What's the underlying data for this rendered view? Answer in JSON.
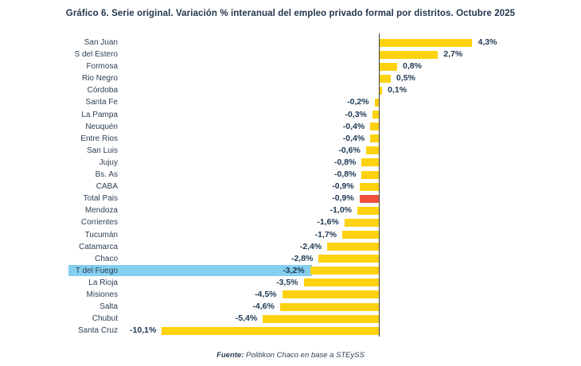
{
  "title": "Gráfico 6. Serie original. Variación % interanual del empleo privado formal por distritos. Octubre 2025",
  "source": {
    "label": "Fuente:",
    "text": " Politikon Chaco en base a STEySS"
  },
  "colors": {
    "bar": "#fdd20e",
    "bar_special": "#f0503c",
    "row_highlight": "#85cfef",
    "axis": "#3f3f3f",
    "text": "#24364f"
  },
  "chart_data": {
    "type": "bar",
    "orientation": "horizontal",
    "unit": "%",
    "value_range": [
      -10.1,
      4.3
    ],
    "grid": false,
    "legend": false,
    "title": "Gráfico 6. Serie original. Variación % interanual del empleo privado formal por distritos. Octubre 2025",
    "highlighted_category": "T del Fuego",
    "special_colored_category": "Total Pais",
    "series": [
      {
        "name": "San Juan",
        "value": 4.3,
        "label": "4,3%"
      },
      {
        "name": "S del Estero",
        "value": 2.7,
        "label": "2,7%"
      },
      {
        "name": "Formosa",
        "value": 0.8,
        "label": "0,8%"
      },
      {
        "name": "Rio Negro",
        "value": 0.5,
        "label": "0,5%"
      },
      {
        "name": "Córdoba",
        "value": 0.1,
        "label": "0,1%"
      },
      {
        "name": "Santa Fe",
        "value": -0.2,
        "label": "-0,2%"
      },
      {
        "name": "La Pampa",
        "value": -0.3,
        "label": "-0,3%"
      },
      {
        "name": "Neuquén",
        "value": -0.4,
        "label": "-0,4%"
      },
      {
        "name": "Entre Rios",
        "value": -0.4,
        "label": "-0,4%"
      },
      {
        "name": "San Luis",
        "value": -0.6,
        "label": "-0,6%"
      },
      {
        "name": "Jujuy",
        "value": -0.8,
        "label": "-0,8%"
      },
      {
        "name": "Bs. As",
        "value": -0.8,
        "label": "-0,8%"
      },
      {
        "name": "CABA",
        "value": -0.9,
        "label": "-0,9%"
      },
      {
        "name": "Total Pais",
        "value": -0.9,
        "label": "-0,9%",
        "color": "red"
      },
      {
        "name": "Mendoza",
        "value": -1.0,
        "label": "-1,0%"
      },
      {
        "name": "Corrientes",
        "value": -1.6,
        "label": "-1,6%"
      },
      {
        "name": "Tucumán",
        "value": -1.7,
        "label": "-1,7%"
      },
      {
        "name": "Catamarca",
        "value": -2.4,
        "label": "-2,4%"
      },
      {
        "name": "Chaco",
        "value": -2.8,
        "label": "-2,8%"
      },
      {
        "name": "T del Fuego",
        "value": -3.2,
        "label": "-3,2%",
        "row_highlight": true
      },
      {
        "name": "La Rioja",
        "value": -3.5,
        "label": "-3,5%"
      },
      {
        "name": "Misiones",
        "value": -4.5,
        "label": "-4,5%"
      },
      {
        "name": "Salta",
        "value": -4.6,
        "label": "-4,6%"
      },
      {
        "name": "Chubut",
        "value": -5.4,
        "label": "-5,4%"
      },
      {
        "name": "Santa Cruz",
        "value": -10.1,
        "label": "-10,1%"
      }
    ]
  }
}
